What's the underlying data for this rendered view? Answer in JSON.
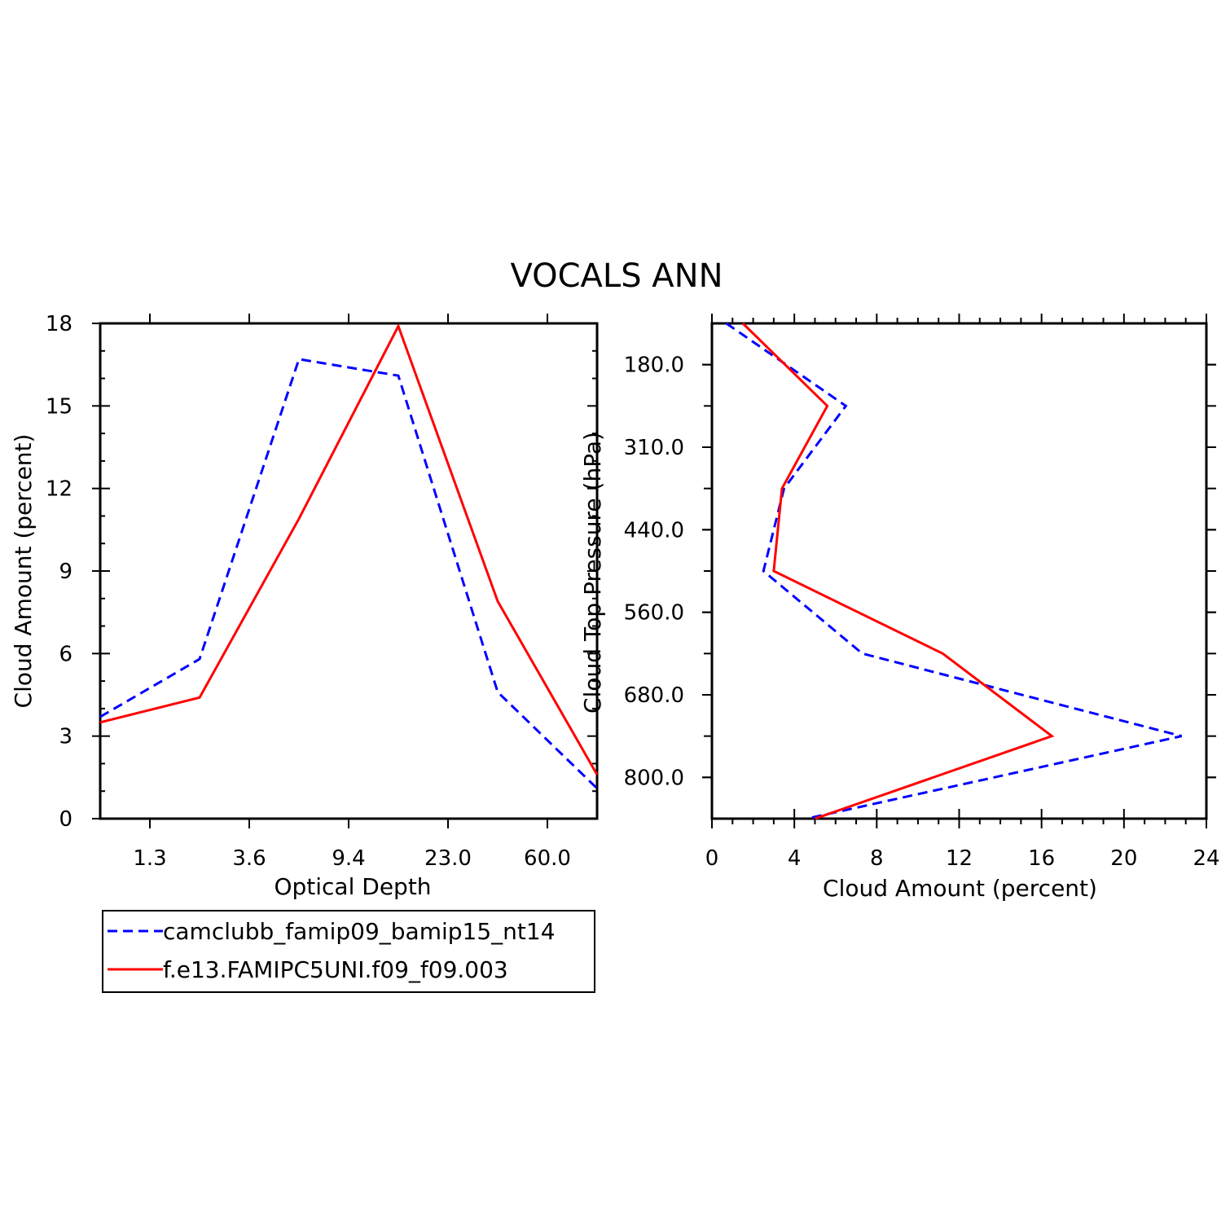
{
  "title": "VOCALS ANN",
  "colors": {
    "series1": "#0000ff",
    "series2": "#ff0000",
    "axis": "#000000"
  },
  "chart_data": [
    {
      "type": "line",
      "xlabel": "Optical Depth",
      "ylabel": "Cloud Amount (percent)",
      "x_ticks": [
        "1.3",
        "3.6",
        "9.4",
        "23.0",
        "60.0"
      ],
      "y_ticks": [
        "0",
        "3",
        "6",
        "9",
        "12",
        "15",
        "18"
      ],
      "ylim": [
        0,
        18
      ],
      "x_index_range": [
        0.5,
        5.5
      ],
      "x": [
        0.5,
        1.5,
        2.5,
        3.5,
        4.5,
        5.5
      ],
      "series": [
        {
          "name": "camclubb_famip09_bamip15_nt14",
          "values": [
            3.7,
            5.8,
            16.7,
            16.1,
            4.6,
            1.1
          ]
        },
        {
          "name": "f.e13.FAMIPC5UNI.f09_f09.003",
          "values": [
            3.5,
            4.4,
            10.9,
            17.9,
            7.9,
            1.6
          ]
        }
      ]
    },
    {
      "type": "line",
      "xlabel": "Cloud Amount (percent)",
      "ylabel": "Cloud Top Pressure (hPa)",
      "x_ticks": [
        "0",
        "4",
        "8",
        "12",
        "16",
        "20",
        "24"
      ],
      "y_ticks": [
        "180.0",
        "310.0",
        "440.0",
        "560.0",
        "680.0",
        "800.0"
      ],
      "xlim": [
        0,
        24
      ],
      "y_index_range": [
        0.5,
        6.5
      ],
      "y": [
        0.5,
        1.5,
        2.5,
        3.5,
        4.5,
        5.5,
        6.5
      ],
      "series": [
        {
          "name": "camclubb_famip09_bamip15_nt14",
          "values": [
            0.7,
            6.5,
            3.5,
            2.5,
            7.3,
            22.8,
            4.6
          ]
        },
        {
          "name": "f.e13.FAMIPC5UNI.f09_f09.003",
          "values": [
            1.5,
            5.6,
            3.4,
            3.0,
            11.2,
            16.5,
            5.0
          ]
        }
      ]
    }
  ],
  "legend": [
    {
      "label": "camclubb_famip09_bamip15_nt14",
      "style": "dashed"
    },
    {
      "label": "f.e13.FAMIPC5UNI.f09_f09.003",
      "style": "solid"
    }
  ]
}
